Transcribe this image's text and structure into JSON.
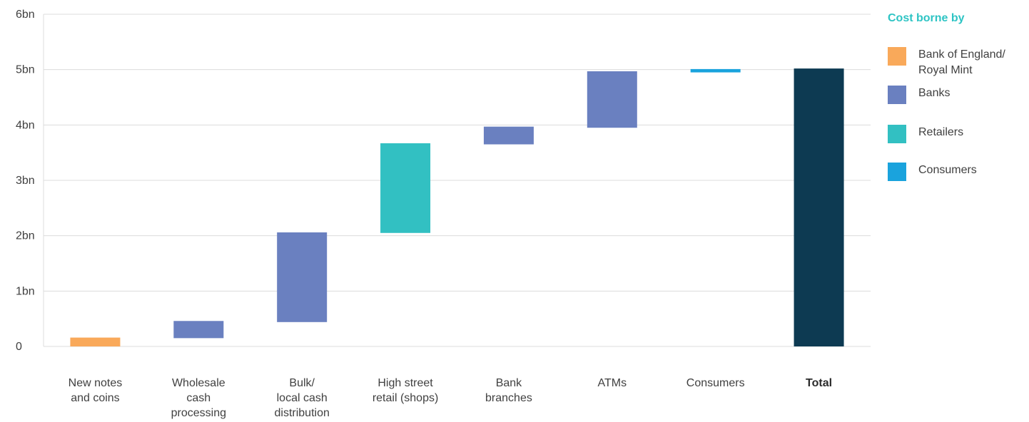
{
  "chart_data": {
    "type": "bar",
    "subtype": "waterfall",
    "y_ticks": [
      "0",
      "1bn",
      "2bn",
      "3bn",
      "4bn",
      "5bn",
      "6bn"
    ],
    "ylim": [
      0,
      6
    ],
    "y_unit": "bn",
    "grid": true,
    "legend_position": "right",
    "categories": [
      [
        "New notes",
        "and coins"
      ],
      [
        "Wholesale",
        "cash",
        "processing"
      ],
      [
        "Bulk/",
        "local cash",
        "distribution"
      ],
      [
        "High street",
        "retail (shops)"
      ],
      [
        "Bank",
        "branches"
      ],
      [
        "ATMs"
      ],
      [
        "Consumers"
      ],
      [
        "Total"
      ]
    ],
    "bars": [
      {
        "category": "New notes and coins",
        "start": 0.0,
        "end": 0.16,
        "value": 0.16,
        "cost_borne_by": "Bank of England/ Royal Mint"
      },
      {
        "category": "Wholesale cash processing",
        "start": 0.15,
        "end": 0.46,
        "value": 0.31,
        "cost_borne_by": "Banks"
      },
      {
        "category": "Bulk/ local cash distribution",
        "start": 0.44,
        "end": 2.06,
        "value": 1.62,
        "cost_borne_by": "Banks"
      },
      {
        "category": "High street retail (shops)",
        "start": 2.05,
        "end": 3.67,
        "value": 1.62,
        "cost_borne_by": "Retailers"
      },
      {
        "category": "Bank branches",
        "start": 3.65,
        "end": 3.97,
        "value": 0.32,
        "cost_borne_by": "Banks"
      },
      {
        "category": "ATMs",
        "start": 3.95,
        "end": 4.97,
        "value": 1.02,
        "cost_borne_by": "Banks"
      },
      {
        "category": "Consumers",
        "start": 4.95,
        "end": 5.01,
        "value": 0.06,
        "cost_borne_by": "Consumers"
      },
      {
        "category": "Total",
        "start": 0.0,
        "end": 5.02,
        "value": 5.02,
        "cost_borne_by": "Total"
      }
    ],
    "colors": {
      "Bank of England/ Royal Mint": "#f9a95a",
      "Banks": "#6a80c0",
      "Retailers": "#32c0c2",
      "Consumers": "#1aa3dd",
      "Total": "#0d3a52",
      "grid": "#dcdcdc",
      "legend_title": "#2ec4c4"
    },
    "legend": {
      "title": "Cost borne by",
      "items": [
        {
          "label_lines": [
            "Bank of England/",
            "Royal Mint"
          ],
          "key": "Bank of England/ Royal Mint"
        },
        {
          "label_lines": [
            "Banks"
          ],
          "key": "Banks"
        },
        {
          "label_lines": [
            "Retailers"
          ],
          "key": "Retailers"
        },
        {
          "label_lines": [
            "Consumers"
          ],
          "key": "Consumers"
        }
      ]
    }
  }
}
